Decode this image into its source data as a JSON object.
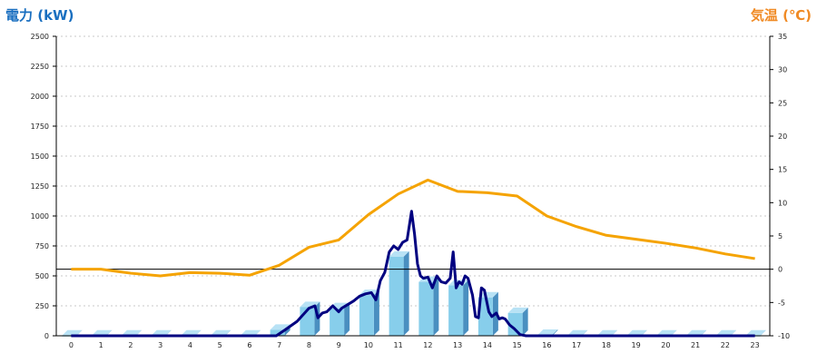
{
  "chart_data": {
    "type": "bar",
    "title_left": "電力 (kW)",
    "title_right": "気温 (℃)",
    "categories": [
      "0",
      "1",
      "2",
      "3",
      "4",
      "5",
      "6",
      "7",
      "8",
      "9",
      "10",
      "11",
      "12",
      "13",
      "14",
      "15",
      "16",
      "17",
      "18",
      "19",
      "20",
      "21",
      "22",
      "23"
    ],
    "y_left": {
      "min": 0,
      "max": 2500,
      "ticks": [
        0,
        250,
        500,
        750,
        1000,
        1250,
        1500,
        1750,
        2000,
        2250,
        2500
      ]
    },
    "y_right": {
      "min": -10,
      "max": 35,
      "ticks": [
        -10,
        -5,
        0,
        5,
        10,
        15,
        20,
        25,
        30,
        35
      ]
    },
    "grid": true,
    "series": [
      {
        "kind": "bar",
        "axis": "left",
        "color": "#87ceeb",
        "values": [
          2,
          2,
          2,
          2,
          2,
          2,
          2,
          50,
          240,
          230,
          340,
          660,
          450,
          420,
          320,
          190,
          8,
          2,
          2,
          2,
          2,
          2,
          2,
          2
        ]
      },
      {
        "kind": "line",
        "axis": "right",
        "color": "#f5a300",
        "values": [
          0.0,
          0.0,
          -0.6,
          -1.0,
          -0.5,
          -0.6,
          -0.9,
          0.6,
          3.3,
          4.4,
          8.2,
          11.3,
          13.4,
          11.7,
          11.5,
          11.0,
          8.0,
          6.4,
          5.1,
          4.5,
          3.9,
          3.2,
          2.3,
          1.6
        ]
      },
      {
        "kind": "line",
        "axis": "left",
        "color": "#000080",
        "x": [
          0,
          1,
          2,
          3,
          4,
          5,
          6,
          6.9,
          7.2,
          7.6,
          8.0,
          8.2,
          8.3,
          8.45,
          8.6,
          8.8,
          9.0,
          9.1,
          9.3,
          9.5,
          9.7,
          9.9,
          10.1,
          10.25,
          10.4,
          10.55,
          10.7,
          10.85,
          11.0,
          11.15,
          11.3,
          11.45,
          11.55,
          11.65,
          11.75,
          11.85,
          12.0,
          12.15,
          12.3,
          12.45,
          12.6,
          12.75,
          12.85,
          12.95,
          13.05,
          13.15,
          13.25,
          13.35,
          13.5,
          13.6,
          13.7,
          13.8,
          13.9,
          14.05,
          14.15,
          14.3,
          14.4,
          14.5,
          14.6,
          14.75,
          14.9,
          15.1,
          15.3,
          15.6,
          16,
          17,
          18,
          19,
          20,
          21,
          22,
          23
        ],
        "values": [
          0,
          0,
          0,
          0,
          0,
          0,
          0,
          0,
          50,
          120,
          230,
          250,
          150,
          190,
          200,
          250,
          200,
          230,
          260,
          290,
          330,
          350,
          360,
          300,
          460,
          530,
          700,
          750,
          720,
          780,
          800,
          1040,
          850,
          600,
          500,
          480,
          490,
          400,
          500,
          450,
          440,
          480,
          700,
          400,
          450,
          430,
          500,
          480,
          340,
          160,
          150,
          400,
          380,
          200,
          160,
          190,
          140,
          150,
          140,
          90,
          60,
          10,
          0,
          0,
          0,
          0,
          0,
          0,
          0,
          0,
          0,
          0
        ]
      }
    ],
    "reference_line": {
      "axis": "right",
      "value": 0
    }
  }
}
